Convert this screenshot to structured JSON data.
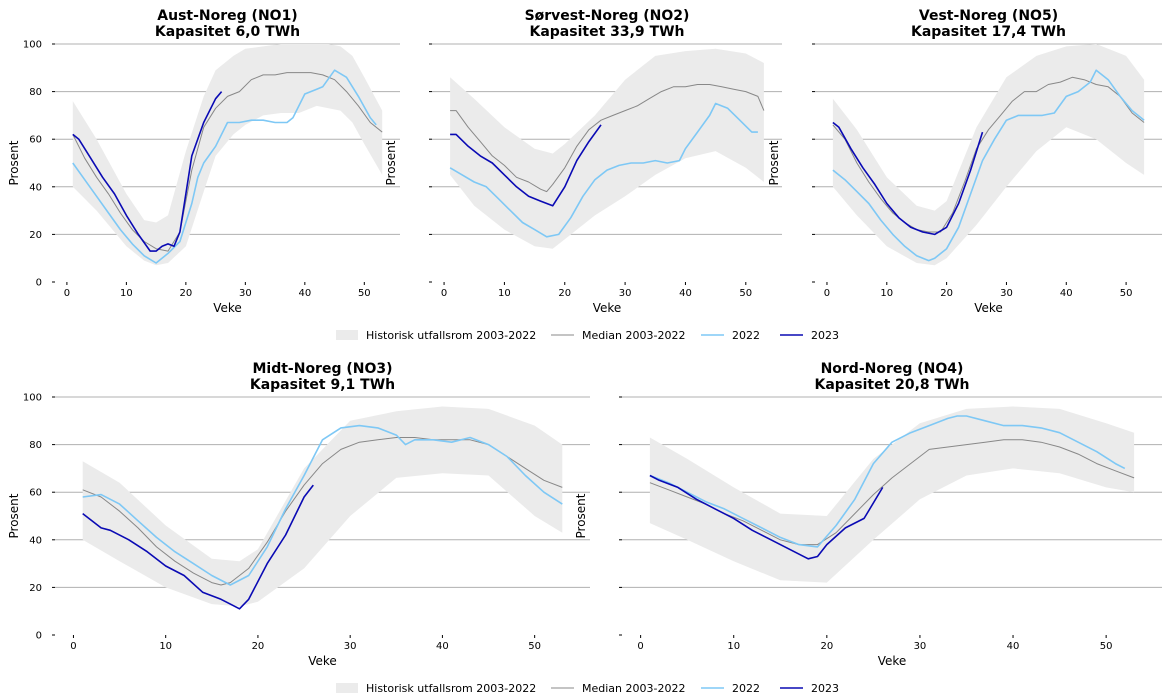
{
  "legend": {
    "band": "Historisk utfallsrom 2003-2022",
    "median": "Median 2003-2022",
    "y2022": "2022",
    "y2023": "2023"
  },
  "colors": {
    "band": "#ebebeb",
    "median": "#888888",
    "y2022": "#7ec8f5",
    "y2023": "#0a0ab4",
    "grid": "#b0b0b0"
  },
  "chart_data": [
    {
      "type": "line",
      "title": "Aust-Noreg (NO1)",
      "subtitle": "Kapasitet 6,0 TWh",
      "xlabel": "Veke",
      "ylabel": "Prosent",
      "xlim": [
        -2,
        56
      ],
      "ylim": [
        0,
        100
      ],
      "xticks": [
        0,
        10,
        20,
        30,
        40,
        50
      ],
      "yticks": [
        0,
        20,
        40,
        60,
        80,
        100
      ],
      "grid": "horizontal",
      "band": {
        "x": [
          1,
          5,
          10,
          13,
          15,
          17,
          20,
          23,
          25,
          28,
          30,
          33,
          36,
          39,
          42,
          44,
          46,
          48,
          50,
          53
        ],
        "lower": [
          40,
          30,
          15,
          9,
          7,
          8,
          15,
          38,
          53,
          62,
          66,
          70,
          71,
          71,
          74,
          73,
          72,
          67,
          58,
          45
        ],
        "upper": [
          76,
          60,
          37,
          26,
          25,
          28,
          55,
          78,
          89,
          95,
          98,
          99,
          100,
          100,
          100,
          100,
          99,
          95,
          86,
          72
        ]
      },
      "series": [
        {
          "name": "Median 2003-2022",
          "x": [
            1,
            3,
            5,
            7,
            9,
            11,
            13,
            15,
            17,
            19,
            21,
            23,
            25,
            27,
            29,
            31,
            33,
            35,
            37,
            39,
            41,
            43,
            45,
            47,
            49,
            51,
            53
          ],
          "y": [
            62,
            52,
            44,
            37,
            29,
            22,
            17,
            14,
            13,
            21,
            47,
            65,
            73,
            78,
            80,
            85,
            87,
            87,
            88,
            88,
            88,
            87,
            85,
            80,
            74,
            67,
            63
          ]
        },
        {
          "name": "2022",
          "x": [
            1,
            3,
            5,
            7,
            9,
            11,
            13,
            15,
            17,
            19,
            21,
            22,
            23,
            25,
            27,
            29,
            31,
            33,
            35,
            37,
            38,
            40,
            42,
            43,
            45,
            47,
            49,
            51,
            52
          ],
          "y": [
            50,
            43,
            36,
            29,
            22,
            16,
            11,
            8,
            12,
            17,
            33,
            44,
            50,
            57,
            67,
            67,
            68,
            68,
            67,
            67,
            69,
            79,
            81,
            82,
            89,
            86,
            78,
            69,
            66
          ]
        },
        {
          "name": "2023",
          "x": [
            1,
            2,
            4,
            6,
            8,
            10,
            12,
            14,
            15,
            16,
            17,
            18,
            19,
            21,
            23,
            25,
            26
          ],
          "y": [
            62,
            60,
            52,
            44,
            37,
            28,
            20,
            13,
            13,
            15,
            16,
            15,
            21,
            53,
            67,
            77,
            80
          ]
        }
      ]
    },
    {
      "type": "line",
      "title": "Sørvest-Noreg (NO2)",
      "subtitle": "Kapasitet 33,9 TWh",
      "xlabel": "Veke",
      "ylabel": "Prosent",
      "xlim": [
        -2,
        56
      ],
      "ylim": [
        0,
        100
      ],
      "xticks": [
        0,
        10,
        20,
        30,
        40,
        50
      ],
      "yticks": [
        0,
        20,
        40,
        60,
        80,
        100
      ],
      "grid": "horizontal",
      "band": {
        "x": [
          1,
          5,
          10,
          15,
          18,
          20,
          25,
          30,
          35,
          40,
          45,
          50,
          53
        ],
        "lower": [
          45,
          32,
          22,
          15,
          14,
          18,
          28,
          36,
          45,
          52,
          55,
          48,
          42
        ],
        "upper": [
          86,
          77,
          65,
          56,
          54,
          58,
          70,
          85,
          95,
          97,
          98,
          96,
          92
        ]
      },
      "series": [
        {
          "name": "Median 2003-2022",
          "x": [
            1,
            2,
            4,
            6,
            8,
            10,
            12,
            14,
            16,
            17,
            18,
            20,
            22,
            24,
            26,
            28,
            30,
            32,
            34,
            36,
            38,
            40,
            42,
            44,
            46,
            48,
            50,
            52,
            53
          ],
          "y": [
            72,
            72,
            65,
            59,
            53,
            49,
            44,
            42,
            39,
            38,
            41,
            48,
            57,
            64,
            68,
            70,
            72,
            74,
            77,
            80,
            82,
            82,
            83,
            83,
            82,
            81,
            80,
            78,
            72
          ]
        },
        {
          "name": "2022",
          "x": [
            1,
            3,
            5,
            7,
            9,
            11,
            13,
            15,
            17,
            19,
            21,
            23,
            25,
            27,
            29,
            31,
            33,
            35,
            37,
            39,
            40,
            42,
            44,
            45,
            47,
            49,
            51,
            52
          ],
          "y": [
            48,
            45,
            42,
            40,
            35,
            30,
            25,
            22,
            19,
            20,
            27,
            36,
            43,
            47,
            49,
            50,
            50,
            51,
            50,
            51,
            56,
            63,
            70,
            75,
            73,
            68,
            63,
            63
          ]
        },
        {
          "name": "2023",
          "x": [
            1,
            2,
            4,
            6,
            8,
            10,
            12,
            14,
            16,
            18,
            20,
            22,
            24,
            26
          ],
          "y": [
            62,
            62,
            57,
            53,
            50,
            45,
            40,
            36,
            34,
            32,
            40,
            51,
            59,
            66
          ]
        }
      ]
    },
    {
      "type": "line",
      "title": "Vest-Noreg (NO5)",
      "subtitle": "Kapasitet 17,4 TWh",
      "xlabel": "Veke",
      "ylabel": "Prosent",
      "xlim": [
        -2,
        56
      ],
      "ylim": [
        0,
        100
      ],
      "xticks": [
        0,
        10,
        20,
        30,
        40,
        50
      ],
      "yticks": [
        0,
        20,
        40,
        60,
        80,
        100
      ],
      "grid": "horizontal",
      "band": {
        "x": [
          1,
          5,
          10,
          15,
          18,
          20,
          25,
          30,
          35,
          40,
          45,
          50,
          53
        ],
        "lower": [
          40,
          28,
          15,
          8,
          7,
          10,
          24,
          40,
          55,
          65,
          60,
          50,
          45
        ],
        "upper": [
          77,
          64,
          44,
          32,
          30,
          34,
          65,
          86,
          95,
          99,
          100,
          95,
          85
        ]
      },
      "series": [
        {
          "name": "Median 2003-2022",
          "x": [
            1,
            3,
            5,
            7,
            9,
            11,
            13,
            15,
            17,
            19,
            21,
            23,
            25,
            27,
            29,
            31,
            33,
            35,
            37,
            39,
            41,
            43,
            45,
            47,
            49,
            51,
            53
          ],
          "y": [
            66,
            60,
            50,
            42,
            35,
            29,
            25,
            22,
            21,
            21,
            29,
            42,
            56,
            64,
            70,
            76,
            80,
            80,
            83,
            84,
            86,
            85,
            83,
            82,
            78,
            71,
            67
          ]
        },
        {
          "name": "2022",
          "x": [
            1,
            3,
            5,
            7,
            9,
            11,
            13,
            15,
            17,
            18,
            20,
            22,
            24,
            26,
            28,
            30,
            32,
            34,
            36,
            38,
            40,
            42,
            44,
            45,
            47,
            49,
            51,
            53
          ],
          "y": [
            47,
            43,
            38,
            33,
            26,
            20,
            15,
            11,
            9,
            10,
            14,
            23,
            37,
            51,
            60,
            68,
            70,
            70,
            70,
            71,
            78,
            80,
            84,
            89,
            85,
            78,
            72,
            68
          ]
        },
        {
          "name": "2023",
          "x": [
            1,
            2,
            4,
            6,
            8,
            10,
            12,
            14,
            16,
            18,
            20,
            22,
            24,
            26
          ],
          "y": [
            67,
            65,
            56,
            48,
            41,
            33,
            27,
            23,
            21,
            20,
            23,
            33,
            47,
            63
          ]
        }
      ]
    },
    {
      "type": "line",
      "title": "Midt-Noreg (NO3)",
      "subtitle": "Kapasitet 9,1 TWh",
      "xlabel": "Veke",
      "ylabel": "Prosent",
      "xlim": [
        -2,
        56
      ],
      "ylim": [
        0,
        100
      ],
      "xticks": [
        0,
        10,
        20,
        30,
        40,
        50
      ],
      "yticks": [
        0,
        20,
        40,
        60,
        80,
        100
      ],
      "grid": "horizontal",
      "band": {
        "x": [
          1,
          5,
          10,
          15,
          18,
          20,
          25,
          30,
          35,
          40,
          45,
          50,
          53
        ],
        "lower": [
          40,
          31,
          20,
          13,
          12,
          14,
          28,
          50,
          66,
          68,
          67,
          50,
          43
        ],
        "upper": [
          73,
          64,
          46,
          32,
          31,
          36,
          70,
          90,
          94,
          96,
          95,
          88,
          80
        ]
      },
      "series": [
        {
          "name": "Median 2003-2022",
          "x": [
            1,
            3,
            5,
            7,
            9,
            11,
            13,
            15,
            16,
            17,
            19,
            21,
            23,
            25,
            27,
            29,
            31,
            33,
            35,
            37,
            39,
            41,
            43,
            45,
            47,
            49,
            51,
            53
          ],
          "y": [
            61,
            58,
            52,
            45,
            37,
            31,
            26,
            22,
            21,
            22,
            28,
            39,
            52,
            63,
            72,
            78,
            81,
            82,
            83,
            83,
            82,
            82,
            82,
            80,
            75,
            70,
            65,
            62
          ]
        },
        {
          "name": "2022",
          "x": [
            1,
            3,
            5,
            7,
            9,
            11,
            13,
            15,
            17,
            19,
            21,
            23,
            25,
            27,
            29,
            31,
            33,
            35,
            36,
            37,
            39,
            41,
            43,
            45,
            47,
            49,
            51,
            53
          ],
          "y": [
            58,
            59,
            55,
            48,
            41,
            35,
            30,
            25,
            21,
            25,
            37,
            53,
            67,
            82,
            87,
            88,
            87,
            84,
            80,
            82,
            82,
            81,
            83,
            80,
            75,
            67,
            60,
            55
          ]
        },
        {
          "name": "2023",
          "x": [
            1,
            2,
            3,
            4,
            6,
            8,
            10,
            12,
            14,
            16,
            17,
            18,
            19,
            21,
            23,
            25,
            26
          ],
          "y": [
            51,
            48,
            45,
            44,
            40,
            35,
            29,
            25,
            18,
            15,
            13,
            11,
            15,
            30,
            42,
            58,
            63
          ]
        }
      ]
    },
    {
      "type": "line",
      "title": "Nord-Noreg (NO4)",
      "subtitle": "Kapasitet 20,8 TWh",
      "xlabel": "Veke",
      "ylabel": "Prosent",
      "xlim": [
        -2,
        56
      ],
      "ylim": [
        0,
        100
      ],
      "xticks": [
        0,
        10,
        20,
        30,
        40,
        50
      ],
      "yticks": [
        0,
        20,
        40,
        60,
        80,
        100
      ],
      "grid": "horizontal",
      "band": {
        "x": [
          1,
          5,
          10,
          15,
          20,
          25,
          30,
          35,
          40,
          45,
          50,
          53
        ],
        "lower": [
          47,
          40,
          31,
          23,
          22,
          40,
          57,
          67,
          70,
          68,
          62,
          60
        ],
        "upper": [
          83,
          74,
          62,
          51,
          50,
          74,
          89,
          95,
          96,
          95,
          89,
          85
        ]
      },
      "series": [
        {
          "name": "Median 2003-2022",
          "x": [
            1,
            3,
            5,
            7,
            9,
            11,
            13,
            15,
            17,
            19,
            21,
            23,
            25,
            27,
            29,
            31,
            33,
            35,
            37,
            39,
            41,
            43,
            45,
            47,
            49,
            51,
            53
          ],
          "y": [
            64,
            61,
            58,
            55,
            51,
            48,
            44,
            40,
            38,
            38,
            43,
            51,
            59,
            66,
            72,
            78,
            79,
            80,
            81,
            82,
            82,
            81,
            79,
            76,
            72,
            69,
            66
          ]
        },
        {
          "name": "2022",
          "x": [
            1,
            3,
            5,
            7,
            9,
            11,
            13,
            15,
            17,
            19,
            21,
            23,
            25,
            27,
            29,
            31,
            33,
            34,
            35,
            37,
            39,
            41,
            43,
            45,
            47,
            49,
            51,
            52
          ],
          "y": [
            67,
            64,
            60,
            56,
            53,
            49,
            45,
            41,
            38,
            37,
            46,
            57,
            72,
            81,
            85,
            88,
            91,
            92,
            92,
            90,
            88,
            88,
            87,
            85,
            81,
            77,
            72,
            70
          ]
        },
        {
          "name": "2023",
          "x": [
            1,
            2,
            4,
            6,
            8,
            10,
            12,
            14,
            16,
            18,
            19,
            20,
            22,
            24,
            26
          ],
          "y": [
            67,
            65,
            62,
            57,
            53,
            49,
            44,
            40,
            36,
            32,
            33,
            38,
            45,
            49,
            62
          ]
        }
      ]
    }
  ]
}
